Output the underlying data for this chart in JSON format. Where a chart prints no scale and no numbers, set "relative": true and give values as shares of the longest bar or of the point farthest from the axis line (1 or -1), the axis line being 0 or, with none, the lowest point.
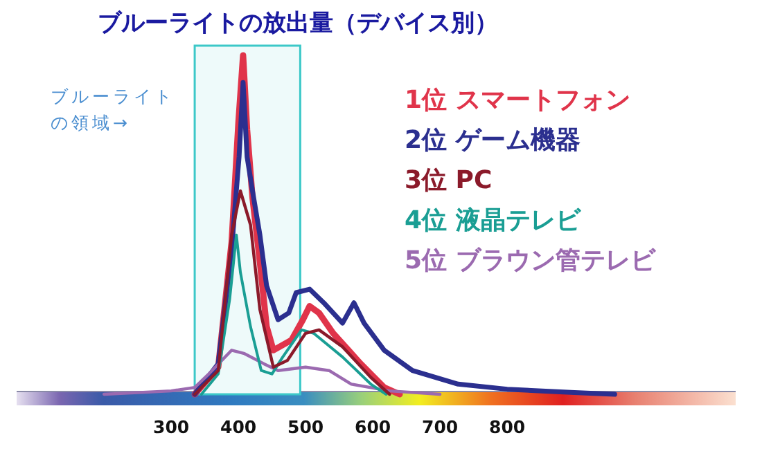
{
  "chart_data": {
    "type": "line",
    "title": "ブルーライトの放出量（デバイス別）",
    "relative": true,
    "xlim": [
      70,
      1140
    ],
    "xticks": [
      300,
      400,
      500,
      600,
      700,
      800
    ],
    "legend": "top right",
    "marker": "none",
    "bands": [
      {
        "axis": "x",
        "from": 335,
        "to": 492,
        "label": "ブルーライトの領域→",
        "color": "#3cc8c8"
      }
    ],
    "series": [
      {
        "name": "1位 スマートフォン",
        "color": "#e0344a",
        "x": [
          335,
          370,
          390,
          400,
          407,
          413,
          421,
          432,
          442,
          452,
          479,
          496,
          506,
          520,
          541,
          582,
          617,
          640
        ],
        "values": [
          0,
          0.08,
          0.45,
          0.8,
          1,
          0.78,
          0.58,
          0.39,
          0.2,
          0.13,
          0.16,
          0.22,
          0.26,
          0.24,
          0.18,
          0.09,
          0.02,
          0
        ]
      },
      {
        "name": "2位 ゲーム機器",
        "color": "#2b2f8f",
        "x": [
          335,
          370,
          390,
          401,
          407,
          413,
          421,
          432,
          442,
          459,
          475,
          486,
          506,
          527,
          555,
          572,
          587,
          617,
          659,
          727,
          800,
          900,
          960
        ],
        "values": [
          0,
          0.09,
          0.43,
          0.7,
          0.92,
          0.7,
          0.6,
          0.47,
          0.32,
          0.22,
          0.24,
          0.3,
          0.31,
          0.27,
          0.21,
          0.27,
          0.21,
          0.13,
          0.07,
          0.03,
          0.015,
          0.005,
          0
        ]
      },
      {
        "name": "3位 PC",
        "color": "#8b1a2a",
        "x": [
          335,
          370,
          390,
          403,
          418,
          432,
          452,
          473,
          500,
          520,
          555,
          597,
          625
        ],
        "values": [
          0,
          0.07,
          0.47,
          0.6,
          0.5,
          0.25,
          0.08,
          0.1,
          0.18,
          0.19,
          0.14,
          0.05,
          0
        ]
      },
      {
        "name": "4位 液晶テレビ",
        "color": "#1a9e94",
        "x": [
          345,
          370,
          387,
          397,
          403,
          418,
          434,
          450,
          466,
          494,
          512,
          555,
          597,
          620
        ],
        "values": [
          0,
          0.06,
          0.28,
          0.47,
          0.36,
          0.2,
          0.07,
          0.06,
          0.11,
          0.19,
          0.18,
          0.11,
          0.03,
          0
        ]
      },
      {
        "name": "5位 ブラウン管テレビ",
        "color": "#9b6ab0",
        "x": [
          200,
          300,
          335,
          356,
          390,
          409,
          438,
          459,
          500,
          535,
          568,
          625,
          700
        ],
        "values": [
          0,
          0.01,
          0.02,
          0.06,
          0.13,
          0.12,
          0.09,
          0.07,
          0.08,
          0.07,
          0.03,
          0.01,
          0
        ]
      }
    ]
  }
}
